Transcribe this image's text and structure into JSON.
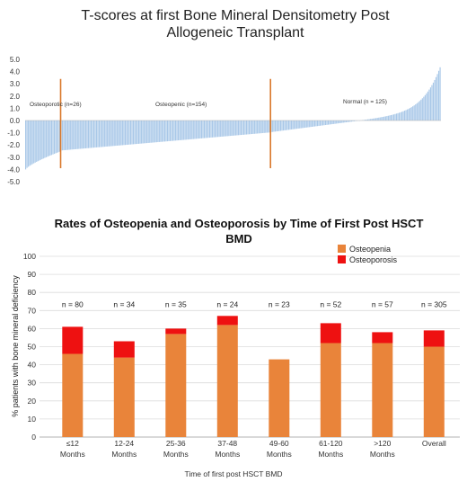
{
  "chart_data": [
    {
      "type": "bar",
      "title_line1": "T-scores at first Bone Mineral Densitometry Post",
      "title_line2": "Allogeneic Transplant",
      "ylim": [
        -5.0,
        5.0
      ],
      "ytick_labels": [
        "5.0",
        "4.0",
        "3.0",
        "2.0",
        "1.0",
        "0.0",
        "-1.0",
        "-2.0",
        "-3.0",
        "-4.0",
        "-5.0"
      ],
      "ytick_values": [
        5,
        4,
        3,
        2,
        1,
        0,
        -1,
        -2,
        -3,
        -4,
        -5
      ],
      "bar_color": "#a9c8e8",
      "divider_color": "#d9782a",
      "n_patients": 305,
      "tscore_min": -4.0,
      "tscore_max": 4.4,
      "annotations": [
        {
          "text": "Osteoporotic (n=26)",
          "group_size": 26
        },
        {
          "text": "Osteopenic (n=154)",
          "group_size": 154
        },
        {
          "text": "Normal (n = 125)",
          "group_size": 125
        }
      ]
    },
    {
      "type": "bar",
      "stacked": true,
      "title_line1": "Rates of Osteopenia and Osteoporosis by Time of First Post HSCT",
      "title_line2": "BMD",
      "ylabel": "% patients with bone mineral deficiency",
      "xlabel": "Time of first post HSCT BMD",
      "ylim": [
        0,
        100
      ],
      "ytick_labels": [
        "100",
        "90",
        "80",
        "70",
        "60",
        "50",
        "40",
        "30",
        "20",
        "10",
        "0"
      ],
      "ytick_values": [
        100,
        90,
        80,
        70,
        60,
        50,
        40,
        30,
        20,
        10,
        0
      ],
      "categories": [
        {
          "line1": "≤12",
          "line2": "Months"
        },
        {
          "line1": "12-24",
          "line2": "Months"
        },
        {
          "line1": "25-36",
          "line2": "Months"
        },
        {
          "line1": "37-48",
          "line2": "Months"
        },
        {
          "line1": "49-60",
          "line2": "Months"
        },
        {
          "line1": "61-120",
          "line2": "Months"
        },
        {
          "line1": ">120",
          "line2": "Months"
        },
        {
          "line1": "Overall",
          "line2": ""
        }
      ],
      "n_labels": [
        "n = 80",
        "n = 34",
        "n = 35",
        "n = 24",
        "n = 23",
        "n = 52",
        "n = 57",
        "n = 305"
      ],
      "series": [
        {
          "name": "Osteopenia",
          "color": "#e9843a",
          "values": [
            46,
            44,
            57,
            62,
            43,
            52,
            52,
            50
          ]
        },
        {
          "name": "Osteoporosis",
          "color": "#ee1111",
          "values": [
            15,
            9,
            3,
            5,
            0,
            11,
            6,
            9
          ]
        }
      ],
      "legend_position": "top-right"
    }
  ]
}
